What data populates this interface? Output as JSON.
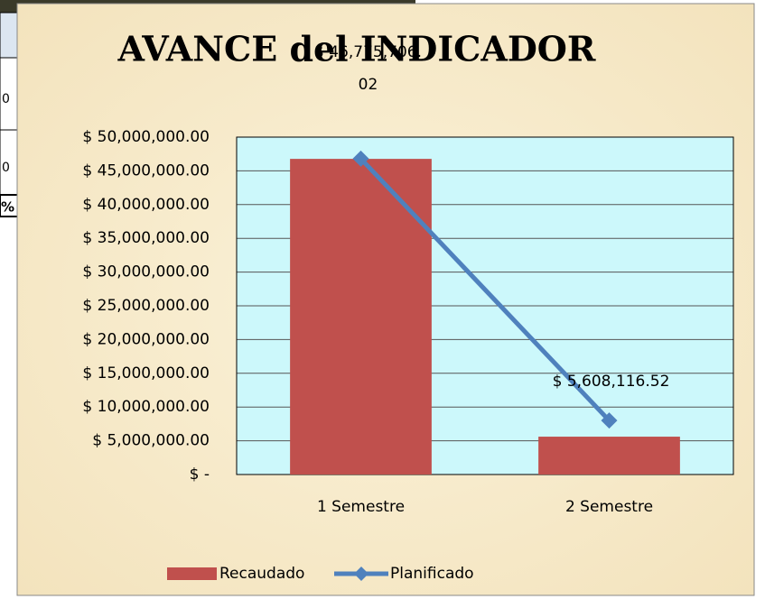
{
  "chart_data": {
    "type": "bar",
    "title": "AVANCE del INDICADOR",
    "categories": [
      "1 Semestre",
      "2 Semestre"
    ],
    "series": [
      {
        "name": "Recaudado",
        "type": "bar",
        "color": "#c0504d",
        "values": [
          46775706.02,
          5608116.52
        ],
        "value_labels": [
          "$ 46,775,706.02",
          "$ 5,608,116.52"
        ]
      },
      {
        "name": "Planificado",
        "type": "line",
        "color": "#4f81bd",
        "values": [
          46800000,
          8000000
        ]
      }
    ],
    "ylim": [
      0,
      50000000
    ],
    "yticks": [
      {
        "value": 0,
        "label": "$ -"
      },
      {
        "value": 5000000,
        "label": "$ 5,000,000.00"
      },
      {
        "value": 10000000,
        "label": "$ 10,000,000.00"
      },
      {
        "value": 15000000,
        "label": "$ 15,000,000.00"
      },
      {
        "value": 20000000,
        "label": "$ 20,000,000.00"
      },
      {
        "value": 25000000,
        "label": "$ 25,000,000.00"
      },
      {
        "value": 30000000,
        "label": "$ 30,000,000.00"
      },
      {
        "value": 35000000,
        "label": "$ 35,000,000.00"
      },
      {
        "value": 40000000,
        "label": "$ 40,000,000.00"
      },
      {
        "value": 45000000,
        "label": "$ 45,000,000.00"
      },
      {
        "value": 50000000,
        "label": "$ 50,000,000.00"
      }
    ],
    "grid": true,
    "legend": "bottom",
    "plot_background": "#ccf8fb"
  },
  "background_fragments": [
    "0",
    "0",
    "%"
  ]
}
